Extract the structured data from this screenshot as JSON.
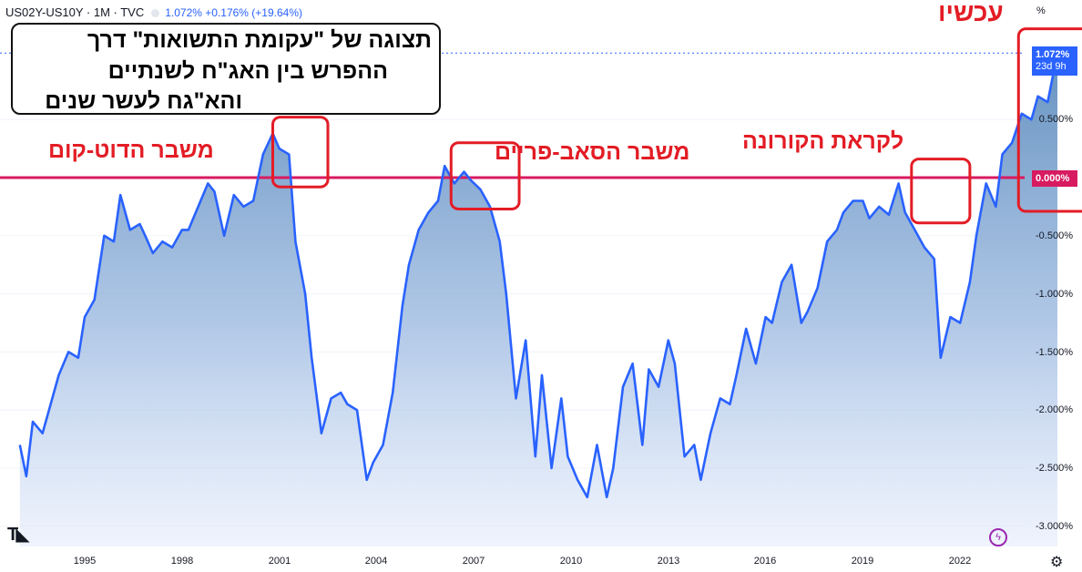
{
  "header": {
    "symbol": "US02Y-US10Y · 1M · TVC",
    "values": "1.072%  +0.176% (+19.64%)"
  },
  "title_box": {
    "line1": "תצוגה של \"עקומת התשואות\" דרך",
    "line2": "ההפרש בין האג\"ח לשנתיים",
    "line3": "והא\"גח לעשר שנים"
  },
  "annotations": {
    "dotcom": "משבר הדוט-קום",
    "subprime": "משבר הסאב-פריים",
    "corona": "לקראת הקורונה",
    "now": "עכשיו"
  },
  "price_tag": {
    "value": "1.072%",
    "countdown": "23d 9h"
  },
  "zero_tag": "0.000%",
  "unit": "%",
  "colors": {
    "line": "#2962ff",
    "zero_line": "#d81b60",
    "annotation": "#e31c25",
    "price_tag_bg": "#2962ff"
  },
  "icons": {
    "logo": "tradingview-logo-icon",
    "lightning": "lightning-icon",
    "settings": "gear-icon"
  },
  "chart_data": {
    "type": "area",
    "xlabel": "",
    "ylabel": "",
    "xlim": [
      1993.0,
      2025.7
    ],
    "ylim": [
      -3.0,
      1.5
    ],
    "x_ticks": [
      "1995",
      "1998",
      "2001",
      "2004",
      "2007",
      "2010",
      "2013",
      "2016",
      "2019",
      "2022"
    ],
    "y_ticks": [
      "0.500%",
      "-0.500%",
      "-1.000%",
      "-1.500%",
      "-2.000%",
      "-2.500%",
      "-3.000%"
    ],
    "reference_line": 0.0,
    "last_value": 1.072,
    "highlight_boxes": [
      {
        "label": "dotcom",
        "x_range": [
          2000.8,
          2002.5
        ],
        "y_range": [
          -0.08,
          0.52
        ]
      },
      {
        "label": "subprime",
        "x_range": [
          2006.3,
          2008.4
        ],
        "y_range": [
          -0.27,
          0.3
        ]
      },
      {
        "label": "corona",
        "x_range": [
          2020.5,
          2022.3
        ],
        "y_range": [
          -0.39,
          0.16
        ]
      },
      {
        "label": "now",
        "x_range": [
          2023.8,
          2026.0
        ],
        "y_range": [
          -0.29,
          1.28
        ]
      }
    ],
    "series": [
      {
        "x": [
          1993.0,
          1993.2,
          1993.4,
          1993.7,
          1994.0,
          1994.2,
          1994.5,
          1994.8,
          1995.0,
          1995.3,
          1995.6,
          1995.9,
          1996.1,
          1996.4,
          1996.7,
          1996.9,
          1997.1,
          1997.4,
          1997.7,
          1998.0,
          1998.2,
          1998.5,
          1998.8,
          1999.0,
          1999.3,
          1999.6,
          1999.9,
          2000.2,
          2000.5,
          2000.8,
          2001.0,
          2001.3,
          2001.5,
          2001.8,
          2002.0,
          2002.3,
          2002.6,
          2002.9,
          2003.1,
          2003.4,
          2003.7,
          2003.9,
          2004.2,
          2004.5,
          2004.8,
          2005.0,
          2005.3,
          2005.6,
          2005.9,
          2006.1,
          2006.4,
          2006.7,
          2006.9,
          2007.2,
          2007.5,
          2007.8,
          2008.0,
          2008.3,
          2008.6,
          2008.9,
          2009.1,
          2009.4,
          2009.7,
          2009.9,
          2010.2,
          2010.5,
          2010.8,
          2011.1,
          2011.3,
          2011.6,
          2011.9,
          2012.2,
          2012.4,
          2012.7,
          2013.0,
          2013.2,
          2013.5,
          2013.8,
          2014.0,
          2014.3,
          2014.6,
          2014.9,
          2015.1,
          2015.4,
          2015.7,
          2016.0,
          2016.2,
          2016.5,
          2016.8,
          2017.1,
          2017.3,
          2017.6,
          2017.9,
          2018.2,
          2018.4,
          2018.7,
          2019.0,
          2019.2,
          2019.5,
          2019.8,
          2020.1,
          2020.3,
          2020.6,
          2020.9,
          2021.2,
          2021.4,
          2021.7,
          2022.0,
          2022.3,
          2022.5,
          2022.8,
          2023.1,
          2023.3,
          2023.6,
          2023.9,
          2024.2,
          2024.4,
          2024.7,
          2025.0
        ],
        "y": [
          -2.3,
          -2.57,
          -2.1,
          -2.2,
          -1.9,
          -1.7,
          -1.5,
          -1.55,
          -1.2,
          -1.05,
          -0.5,
          -0.55,
          -0.15,
          -0.45,
          -0.4,
          -0.52,
          -0.65,
          -0.55,
          -0.6,
          -0.45,
          -0.45,
          -0.25,
          -0.05,
          -0.12,
          -0.5,
          -0.15,
          -0.25,
          -0.2,
          0.2,
          0.38,
          0.25,
          0.2,
          -0.55,
          -1.0,
          -1.55,
          -2.2,
          -1.9,
          -1.85,
          -1.95,
          -2.0,
          -2.6,
          -2.45,
          -2.3,
          -1.85,
          -1.1,
          -0.75,
          -0.45,
          -0.3,
          -0.2,
          0.1,
          -0.05,
          0.05,
          -0.02,
          -0.1,
          -0.25,
          -0.55,
          -1.0,
          -1.9,
          -1.4,
          -2.4,
          -1.7,
          -2.5,
          -1.9,
          -2.4,
          -2.6,
          -2.75,
          -2.3,
          -2.75,
          -2.5,
          -1.8,
          -1.6,
          -2.3,
          -1.65,
          -1.8,
          -1.4,
          -1.6,
          -2.4,
          -2.3,
          -2.6,
          -2.2,
          -1.9,
          -1.95,
          -1.7,
          -1.3,
          -1.6,
          -1.2,
          -1.25,
          -0.9,
          -0.75,
          -1.25,
          -1.15,
          -0.95,
          -0.55,
          -0.45,
          -0.3,
          -0.2,
          -0.2,
          -0.35,
          -0.25,
          -0.32,
          -0.05,
          -0.3,
          -0.45,
          -0.6,
          -0.7,
          -1.55,
          -1.2,
          -1.25,
          -0.9,
          -0.5,
          -0.05,
          -0.25,
          0.2,
          0.3,
          0.55,
          0.5,
          0.7,
          0.65,
          1.07
        ]
      }
    ]
  }
}
